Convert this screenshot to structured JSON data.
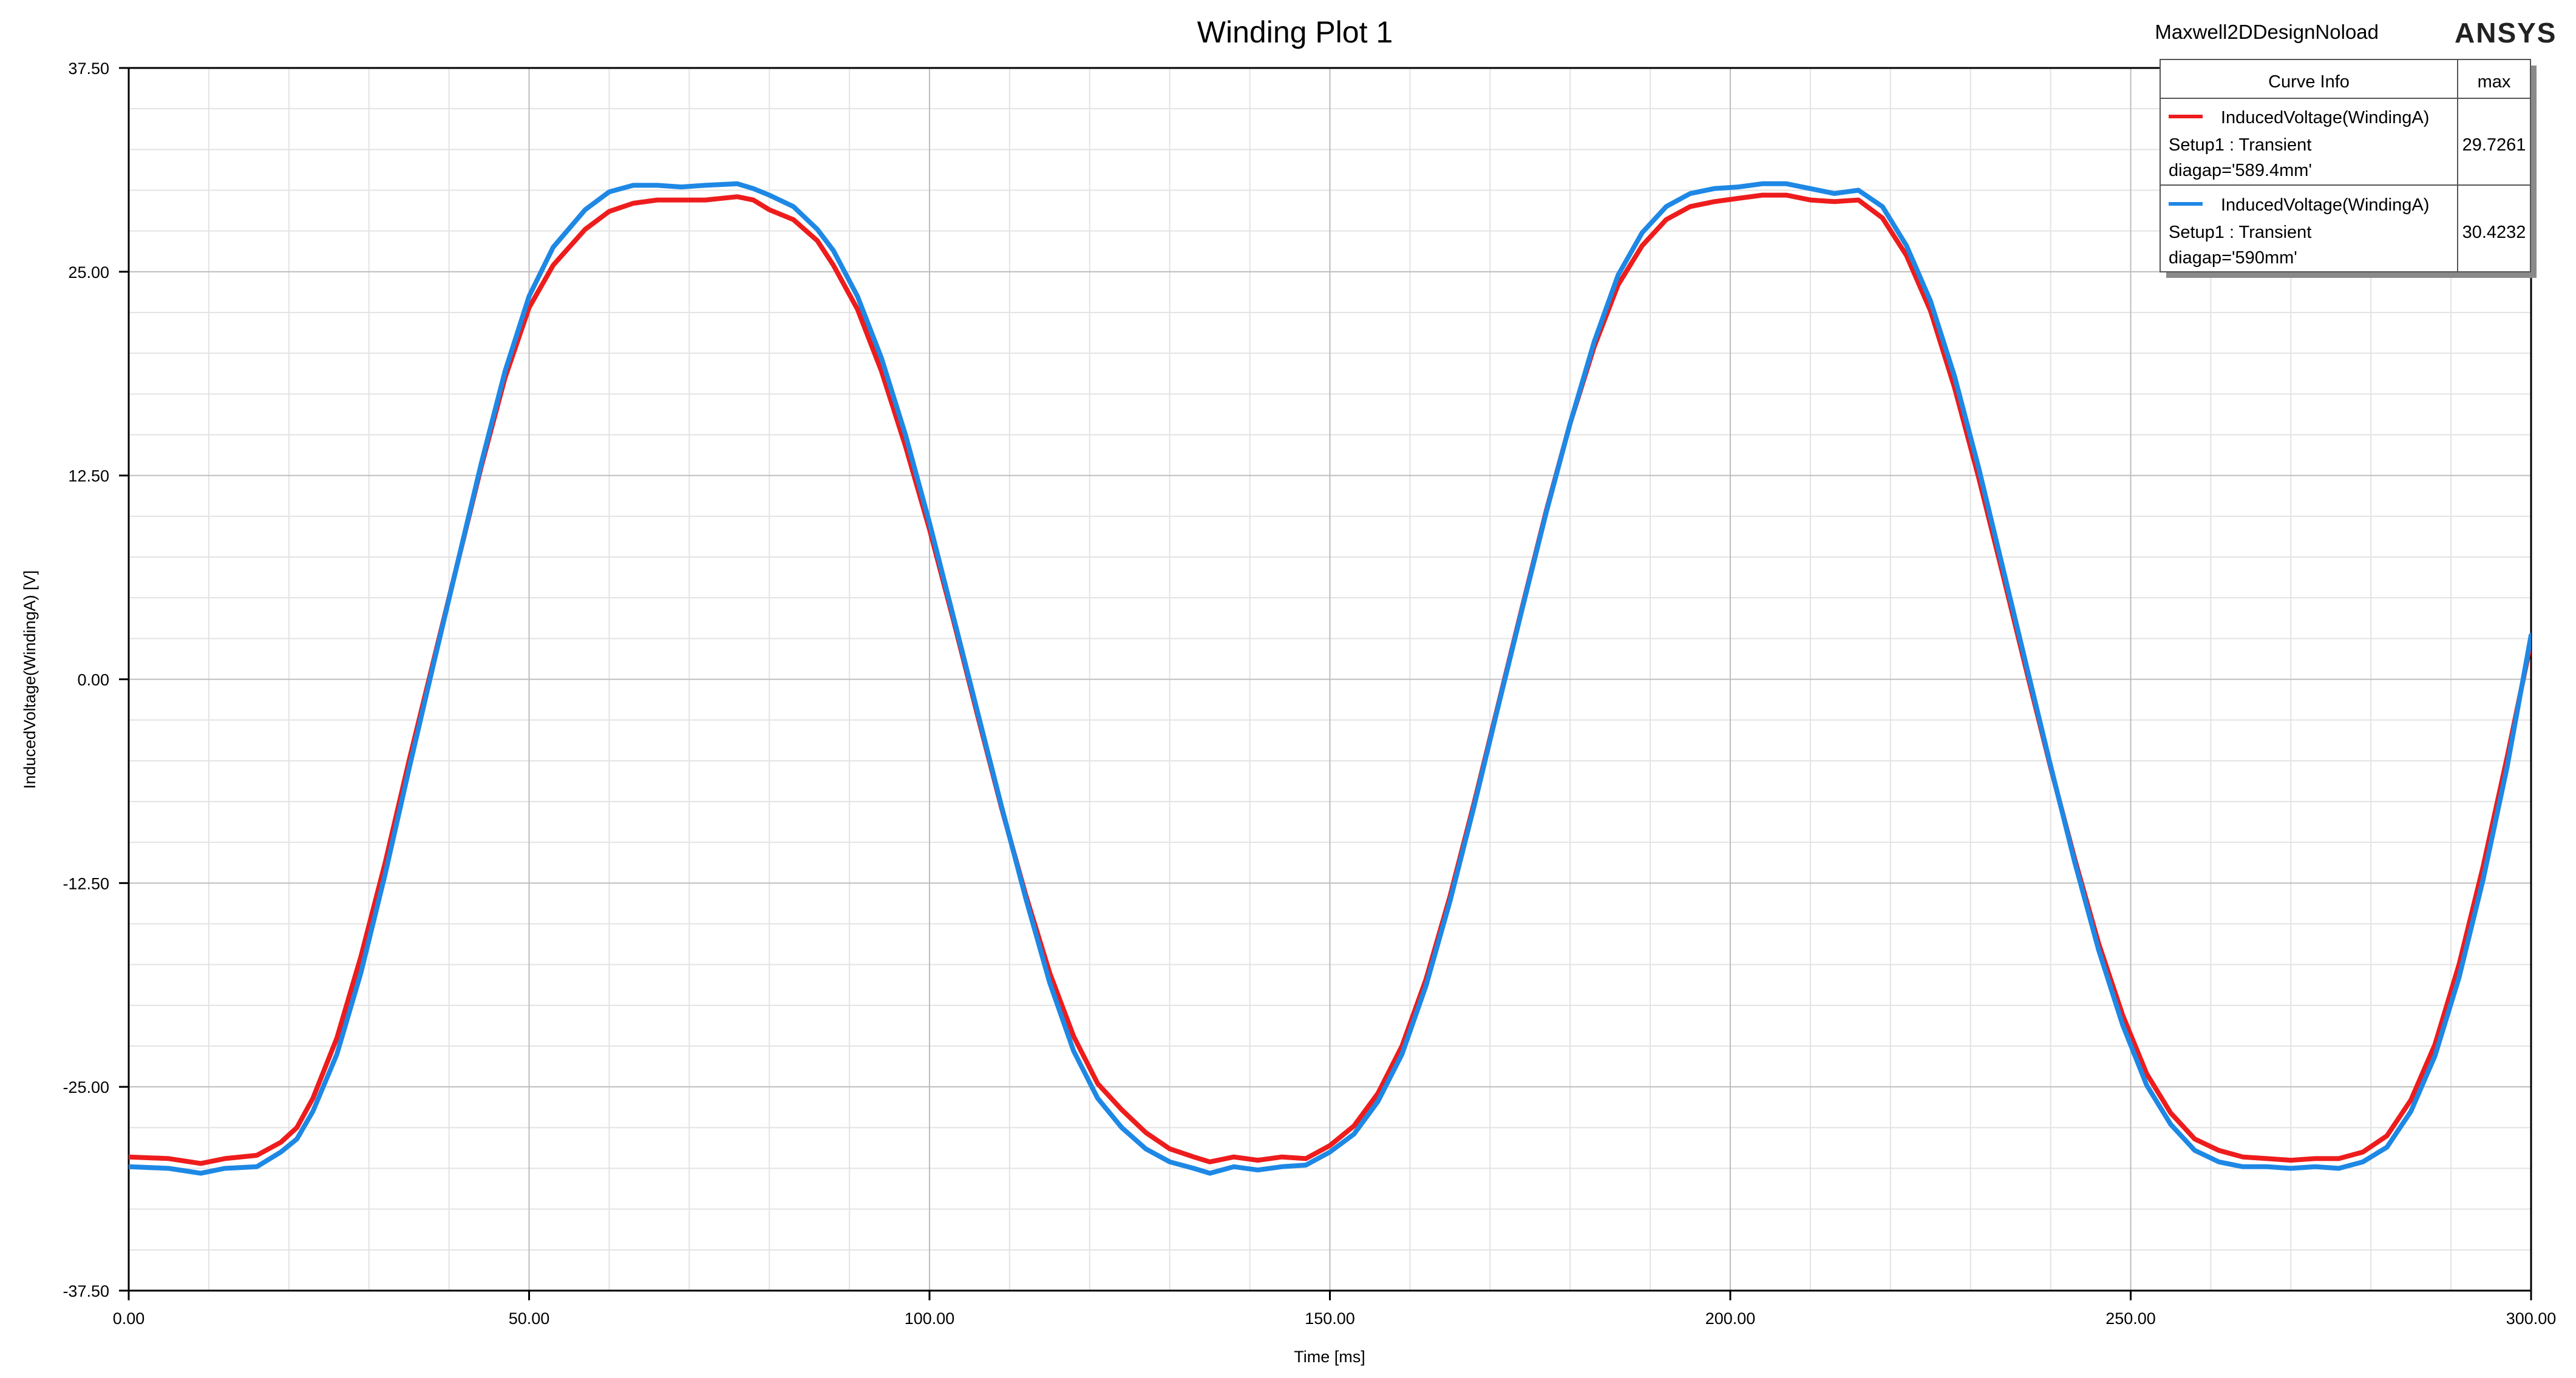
{
  "chart_data": {
    "type": "line",
    "title": "Winding Plot 1",
    "design_name": "Maxwell2DDesignNoload",
    "brand": "ANSYS",
    "xlabel": "Time [ms]",
    "ylabel": "InducedVoltage(WindingA) [V]",
    "xlim": [
      0,
      300
    ],
    "ylim": [
      -37.5,
      37.5
    ],
    "x_ticks": [
      "0.00",
      "50.00",
      "100.00",
      "150.00",
      "200.00",
      "250.00",
      "300.00"
    ],
    "y_ticks": [
      "37.50",
      "25.00",
      "12.50",
      "0.00",
      "-12.50",
      "-25.00",
      "-37.50"
    ],
    "grid": true,
    "legend": {
      "position": "top-right",
      "header": [
        "Curve Info",
        "max"
      ],
      "entries": [
        {
          "name": "InducedVoltage(WindingA)",
          "line2": "Setup1 : Transient",
          "line3": "diagap='589.4mm'",
          "max": "29.7261",
          "color": "#ee1c1c"
        },
        {
          "name": "InducedVoltage(WindingA)",
          "line2": "Setup1 : Transient",
          "line3": "diagap='590mm'",
          "max": "30.4232",
          "color": "#1e88e5"
        }
      ]
    },
    "series": [
      {
        "color": "#ee1c1c",
        "x": [
          0,
          5,
          9,
          12,
          16,
          19,
          21,
          23,
          26,
          29,
          32,
          35,
          38,
          41,
          44,
          47,
          50,
          53,
          57,
          60,
          63,
          66,
          69,
          72,
          76,
          78,
          80,
          83,
          86,
          88,
          91,
          94,
          97,
          100,
          103,
          106,
          109,
          112,
          115,
          118,
          121,
          124,
          127,
          130,
          133,
          135,
          138,
          141,
          144,
          147,
          150,
          153,
          156,
          159,
          162,
          165,
          168,
          171,
          174,
          177,
          180,
          183,
          186,
          189,
          192,
          195,
          198,
          201,
          204,
          207,
          210,
          213,
          216,
          219,
          222,
          225,
          228,
          231,
          234,
          237,
          240,
          243,
          246,
          249,
          252,
          255,
          258,
          261,
          264,
          267,
          270,
          273,
          276,
          279,
          282,
          285,
          288,
          291,
          294,
          297,
          300
        ],
        "y": [
          -29.3,
          -29.4,
          -29.7,
          -29.4,
          -29.2,
          -28.4,
          -27.5,
          -25.7,
          -22.0,
          -17.0,
          -11.3,
          -5.0,
          1.0,
          7.0,
          13.0,
          18.5,
          22.8,
          25.4,
          27.6,
          28.7,
          29.2,
          29.4,
          29.4,
          29.4,
          29.6,
          29.4,
          28.8,
          28.2,
          26.9,
          25.4,
          22.7,
          18.9,
          14.3,
          9.2,
          3.6,
          -2.2,
          -7.9,
          -13.2,
          -18.0,
          -21.9,
          -24.8,
          -26.4,
          -27.8,
          -28.8,
          -29.3,
          -29.6,
          -29.3,
          -29.5,
          -29.3,
          -29.4,
          -28.6,
          -27.4,
          -25.4,
          -22.5,
          -18.4,
          -13.3,
          -7.6,
          -1.6,
          4.4,
          10.3,
          15.7,
          20.4,
          24.2,
          26.6,
          28.2,
          29.0,
          29.3,
          29.5,
          29.7,
          29.7,
          29.4,
          29.3,
          29.4,
          28.3,
          26.0,
          22.6,
          17.9,
          12.4,
          6.5,
          0.5,
          -5.4,
          -11.0,
          -16.2,
          -20.6,
          -24.2,
          -26.6,
          -28.2,
          -28.9,
          -29.3,
          -29.4,
          -29.5,
          -29.4,
          -29.4,
          -29.0,
          -28.0,
          -25.8,
          -22.4,
          -17.5,
          -11.5,
          -4.8,
          2.3
        ]
      },
      {
        "color": "#1e88e5",
        "x": [
          0,
          5,
          9,
          12,
          16,
          19,
          21,
          23,
          26,
          29,
          32,
          35,
          38,
          41,
          44,
          47,
          50,
          53,
          57,
          60,
          63,
          66,
          69,
          72,
          76,
          78,
          80,
          83,
          86,
          88,
          91,
          94,
          97,
          100,
          103,
          106,
          109,
          112,
          115,
          118,
          121,
          124,
          127,
          130,
          133,
          135,
          138,
          141,
          144,
          147,
          150,
          153,
          156,
          159,
          162,
          165,
          168,
          171,
          174,
          177,
          180,
          183,
          186,
          189,
          192,
          195,
          198,
          201,
          204,
          207,
          210,
          213,
          216,
          219,
          222,
          225,
          228,
          231,
          234,
          237,
          240,
          243,
          246,
          249,
          252,
          255,
          258,
          261,
          264,
          267,
          270,
          273,
          276,
          279,
          282,
          285,
          288,
          291,
          294,
          297,
          300
        ],
        "y": [
          -29.9,
          -30.0,
          -30.3,
          -30.0,
          -29.9,
          -29.0,
          -28.2,
          -26.5,
          -23.0,
          -18.0,
          -12.0,
          -5.5,
          0.8,
          7.0,
          13.2,
          18.9,
          23.5,
          26.5,
          28.8,
          29.9,
          30.3,
          30.3,
          30.2,
          30.3,
          30.4,
          30.1,
          29.7,
          29.0,
          27.6,
          26.3,
          23.5,
          19.7,
          15.0,
          9.6,
          3.8,
          -2.0,
          -7.8,
          -13.4,
          -18.6,
          -22.8,
          -25.7,
          -27.5,
          -28.8,
          -29.6,
          -30.0,
          -30.3,
          -29.9,
          -30.1,
          -29.9,
          -29.8,
          -29.0,
          -27.9,
          -25.9,
          -23.0,
          -18.8,
          -13.6,
          -7.8,
          -1.7,
          4.3,
          10.2,
          15.7,
          20.7,
          24.8,
          27.4,
          29.0,
          29.8,
          30.1,
          30.2,
          30.4,
          30.4,
          30.1,
          29.8,
          30.0,
          29.0,
          26.6,
          23.2,
          18.6,
          13.0,
          6.9,
          0.8,
          -5.3,
          -11.2,
          -16.6,
          -21.2,
          -24.9,
          -27.3,
          -28.9,
          -29.6,
          -29.9,
          -29.9,
          -30.0,
          -29.9,
          -30.0,
          -29.6,
          -28.7,
          -26.5,
          -23.1,
          -18.3,
          -12.3,
          -5.4,
          2.7
        ]
      }
    ]
  }
}
